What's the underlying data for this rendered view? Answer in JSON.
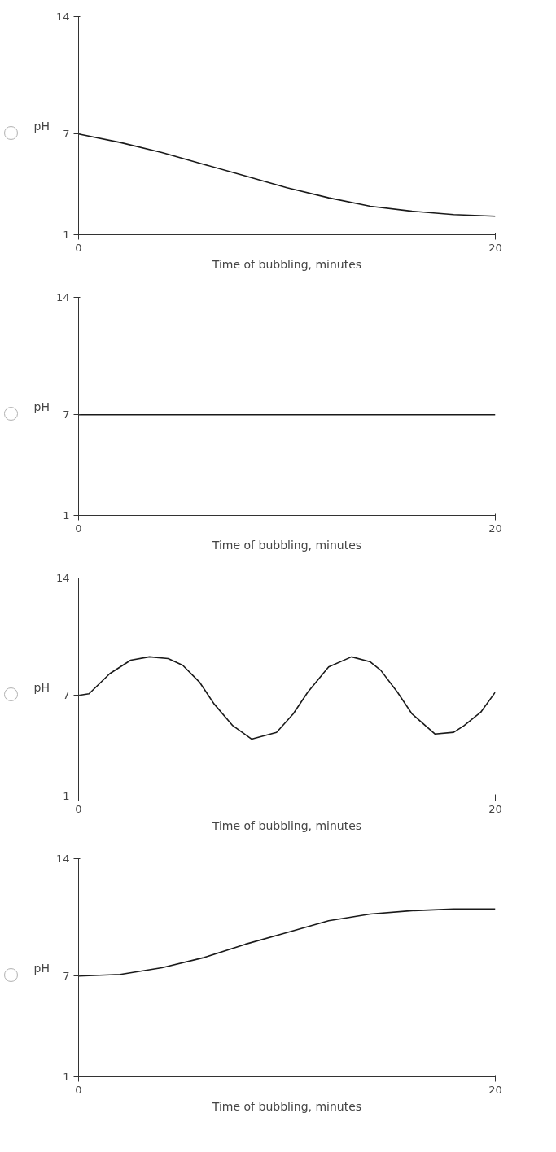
{
  "chart_data": [
    {
      "type": "line",
      "ylabel": "pH",
      "xlabel": "Time of bubbling, minutes",
      "xlim": [
        0,
        20
      ],
      "ylim": [
        1,
        14
      ],
      "xticks": [
        0,
        20
      ],
      "yticks": [
        1,
        7,
        14
      ],
      "grid": false,
      "x": [
        0,
        2,
        4,
        6,
        8,
        10,
        12,
        14,
        16,
        18,
        20
      ],
      "series": [
        {
          "color": "#1a1a1a",
          "values": [
            7,
            6.5,
            5.9,
            5.2,
            4.5,
            3.8,
            3.2,
            2.7,
            2.4,
            2.2,
            2.1
          ]
        }
      ]
    },
    {
      "type": "line",
      "ylabel": "pH",
      "xlabel": "Time of bubbling, minutes",
      "xlim": [
        0,
        20
      ],
      "ylim": [
        1,
        14
      ],
      "xticks": [
        0,
        20
      ],
      "yticks": [
        1,
        7,
        14
      ],
      "grid": false,
      "x": [
        0,
        20
      ],
      "series": [
        {
          "color": "#1a1a1a",
          "values": [
            7,
            7
          ]
        }
      ]
    },
    {
      "type": "line",
      "ylabel": "pH",
      "xlabel": "Time of bubbling, minutes",
      "xlim": [
        0,
        20
      ],
      "ylim": [
        1,
        14
      ],
      "xticks": [
        0,
        20
      ],
      "yticks": [
        1,
        7,
        14
      ],
      "grid": false,
      "x": [
        0,
        0.5,
        1.5,
        2.5,
        3.4,
        4.3,
        5,
        5.8,
        6.5,
        7.4,
        8.3,
        9.5,
        10.3,
        11,
        12,
        13.1,
        14,
        14.5,
        15.3,
        16,
        17.1,
        18,
        18.5,
        19.3,
        20
      ],
      "series": [
        {
          "color": "#1a1a1a",
          "values": [
            7,
            7.1,
            8.3,
            9.1,
            9.3,
            9.2,
            8.8,
            7.8,
            6.5,
            5.2,
            4.4,
            4.8,
            5.9,
            7.2,
            8.7,
            9.3,
            9,
            8.5,
            7.2,
            5.9,
            4.7,
            4.8,
            5.2,
            6,
            7.2
          ]
        }
      ]
    },
    {
      "type": "line",
      "ylabel": "pH",
      "xlabel": "Time of bubbling, minutes",
      "xlim": [
        0,
        20
      ],
      "ylim": [
        1,
        14
      ],
      "xticks": [
        0,
        20
      ],
      "yticks": [
        1,
        7,
        14
      ],
      "grid": false,
      "x": [
        0,
        2,
        4,
        6,
        8,
        10,
        12,
        14,
        16,
        18,
        20
      ],
      "series": [
        {
          "color": "#1a1a1a",
          "values": [
            7,
            7.1,
            7.5,
            8.1,
            8.9,
            9.6,
            10.3,
            10.7,
            10.9,
            11,
            11
          ]
        }
      ]
    }
  ]
}
